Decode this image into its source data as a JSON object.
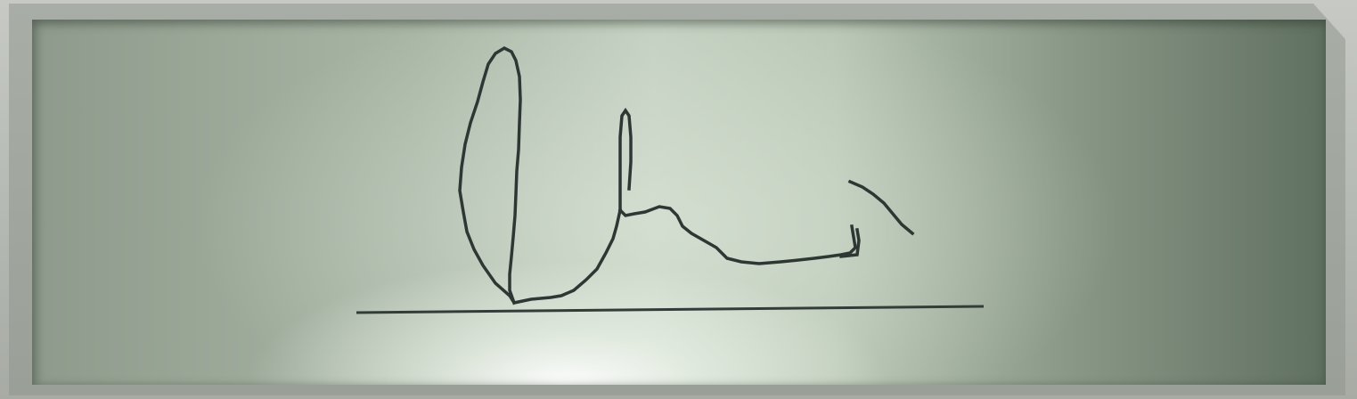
{
  "screen": {
    "type": "signature-pad-lcd",
    "colors": {
      "ink": "#2e3734",
      "lcd_bright": "#c3cfc0",
      "lcd_dark": "#607060",
      "bezel": "#a8ada6"
    }
  },
  "signature": {
    "present": true
  },
  "signature_line": {
    "present": true
  }
}
